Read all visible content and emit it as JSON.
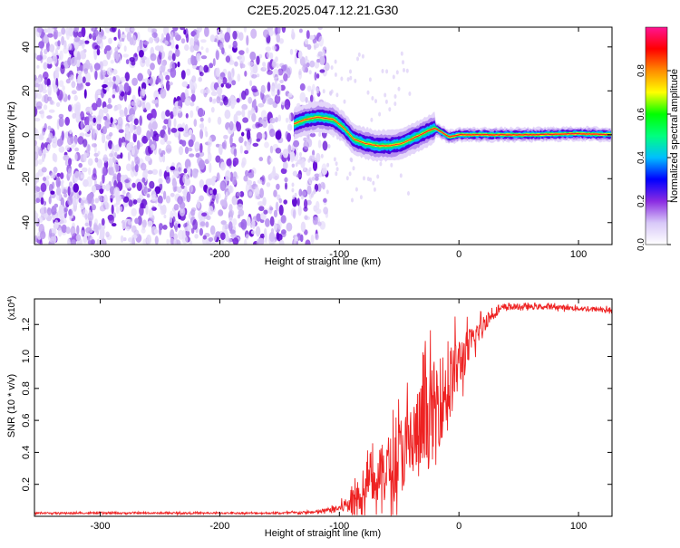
{
  "figure": {
    "title": "C2E5.2025.047.12.21.G30"
  },
  "chart_data": [
    {
      "id": "spectrogram",
      "type": "heatmap",
      "title": "",
      "xlabel": "Height of straight line (km)",
      "ylabel": "Frequency (Hz)",
      "xlim": [
        -355,
        128
      ],
      "ylim": [
        -50,
        49
      ],
      "x_ticks": [
        -300,
        -200,
        -100,
        0,
        100
      ],
      "x_tick_labels": [
        "-300",
        "-200",
        "-100",
        "0",
        "100"
      ],
      "y_ticks": [
        -40,
        -20,
        0,
        20,
        40
      ],
      "y_tick_labels": [
        "-40",
        "-20",
        "0",
        "20",
        "40"
      ],
      "colorbar": {
        "label": "Normalized spectral amplitude",
        "range": [
          0,
          1
        ],
        "ticks": [
          0.0,
          0.2,
          0.4,
          0.6,
          0.8
        ],
        "tick_labels": [
          "0.0",
          "0.2",
          "0.4",
          "0.6",
          "0.8"
        ],
        "colors": [
          "#ffffff",
          "#d8c8f8",
          "#8a2be2",
          "#0000ff",
          "#00bfff",
          "#00ff7f",
          "#00ff00",
          "#ffff00",
          "#ff8c00",
          "#ff0000",
          "#ff1493"
        ]
      },
      "noise_region": {
        "x_range": [
          -355,
          -110
        ],
        "freq_range": [
          -50,
          49
        ]
      },
      "signal_trace": [
        {
          "x": -138,
          "freq": 5
        },
        {
          "x": -128,
          "freq": 7
        },
        {
          "x": -118,
          "freq": 8
        },
        {
          "x": -105,
          "freq": 7
        },
        {
          "x": -96,
          "freq": 3
        },
        {
          "x": -88,
          "freq": -2
        },
        {
          "x": -78,
          "freq": -4
        },
        {
          "x": -68,
          "freq": -5
        },
        {
          "x": -58,
          "freq": -5
        },
        {
          "x": -48,
          "freq": -4
        },
        {
          "x": -40,
          "freq": -2
        },
        {
          "x": -32,
          "freq": 0
        },
        {
          "x": -25,
          "freq": 2
        },
        {
          "x": -20,
          "freq": 3
        },
        {
          "x": -14,
          "freq": 1
        },
        {
          "x": -8,
          "freq": -1
        },
        {
          "x": 0,
          "freq": 0
        },
        {
          "x": 20,
          "freq": 0
        },
        {
          "x": 60,
          "freq": 0
        },
        {
          "x": 100,
          "freq": 0.5
        },
        {
          "x": 128,
          "freq": 0
        }
      ]
    },
    {
      "id": "snr",
      "type": "line",
      "title": "",
      "xlabel": "Height of straight line (km)",
      "ylabel": "SNR (10 * v/v)",
      "y_multiplier": "(x10",
      "y_multiplier_exp": "4",
      "y_multiplier_close": ")",
      "xlim": [
        -355,
        128
      ],
      "ylim": [
        0,
        1.36
      ],
      "x_ticks": [
        -300,
        -200,
        -100,
        0,
        100
      ],
      "x_tick_labels": [
        "-300",
        "-200",
        "-100",
        "0",
        "100"
      ],
      "y_ticks": [
        0.2,
        0.4,
        0.6,
        0.8,
        1.0,
        1.2
      ],
      "y_tick_labels": [
        "0.2",
        "0.4",
        "0.6",
        "0.8",
        "1.0",
        "1.2"
      ],
      "color": "#ee2222",
      "series": [
        {
          "name": "SNR",
          "x": [
            -355,
            -300,
            -250,
            -200,
            -150,
            -120,
            -100,
            -90,
            -80,
            -70,
            -60,
            -50,
            -40,
            -30,
            -20,
            -10,
            0,
            10,
            20,
            30,
            40,
            60,
            80,
            100,
            128
          ],
          "y": [
            0.02,
            0.02,
            0.02,
            0.02,
            0.02,
            0.025,
            0.05,
            0.09,
            0.15,
            0.22,
            0.3,
            0.38,
            0.45,
            0.55,
            0.68,
            0.8,
            0.95,
            1.08,
            1.2,
            1.28,
            1.31,
            1.31,
            1.31,
            1.3,
            1.29
          ],
          "noise": [
            0.005,
            0.005,
            0.005,
            0.005,
            0.005,
            0.01,
            0.02,
            0.08,
            0.12,
            0.16,
            0.2,
            0.24,
            0.28,
            0.32,
            0.3,
            0.25,
            0.18,
            0.1,
            0.06,
            0.03,
            0.02,
            0.015,
            0.015,
            0.015,
            0.015
          ]
        }
      ]
    }
  ]
}
